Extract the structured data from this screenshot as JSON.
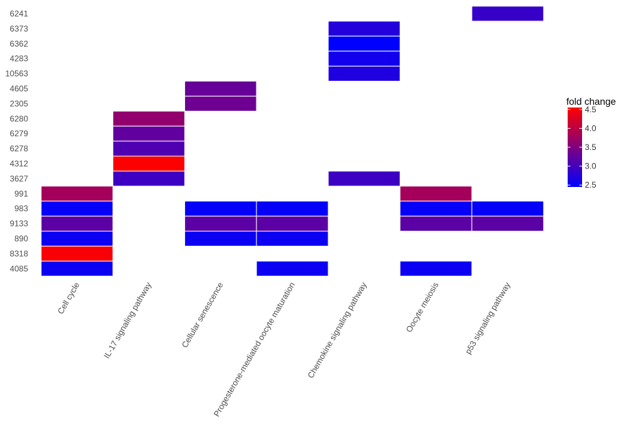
{
  "chart_data": {
    "type": "heatmap",
    "title": "",
    "xlabel": "",
    "ylabel": "",
    "x_categories": [
      "Cell cycle",
      "IL-17 signaling pathway",
      "Cellular senescence",
      "Progesterone-mediated oocyte maturation",
      "Chemokine signaling pathway",
      "Oocyte meiosis",
      "p53 signaling pathway"
    ],
    "y_categories": [
      "6241",
      "6373",
      "6362",
      "4283",
      "10563",
      "4605",
      "2305",
      "6280",
      "6279",
      "6278",
      "4312",
      "3627",
      "991",
      "983",
      "9133",
      "890",
      "8318",
      "4085"
    ],
    "legend": {
      "title": "fold change",
      "range": [
        2.45,
        4.55
      ],
      "ticks": [
        2.5,
        3.0,
        3.5,
        4.0,
        4.5
      ],
      "tick_labels": [
        "2.5",
        "3.0",
        "3.5",
        "4.0",
        "4.5"
      ],
      "position": "right",
      "low_color": "#0000ff",
      "high_color": "#ff0000"
    },
    "grid": false,
    "cells": [
      {
        "x": "p53 signaling pathway",
        "y": "6241",
        "value": 2.9
      },
      {
        "x": "Chemokine signaling pathway",
        "y": "6373",
        "value": 2.75
      },
      {
        "x": "Chemokine signaling pathway",
        "y": "6362",
        "value": 2.45
      },
      {
        "x": "Chemokine signaling pathway",
        "y": "4283",
        "value": 2.6
      },
      {
        "x": "Chemokine signaling pathway",
        "y": "10563",
        "value": 2.7
      },
      {
        "x": "Cellular senescence",
        "y": "4605",
        "value": 3.3
      },
      {
        "x": "Cellular senescence",
        "y": "2305",
        "value": 3.35
      },
      {
        "x": "IL-17 signaling pathway",
        "y": "6280",
        "value": 3.65
      },
      {
        "x": "IL-17 signaling pathway",
        "y": "6279",
        "value": 3.25
      },
      {
        "x": "IL-17 signaling pathway",
        "y": "6278",
        "value": 3.1
      },
      {
        "x": "IL-17 signaling pathway",
        "y": "4312",
        "value": 4.55
      },
      {
        "x": "IL-17 signaling pathway",
        "y": "3627",
        "value": 2.95
      },
      {
        "x": "Chemokine signaling pathway",
        "y": "3627",
        "value": 2.95
      },
      {
        "x": "Cell cycle",
        "y": "991",
        "value": 3.8
      },
      {
        "x": "Oocyte meiosis",
        "y": "991",
        "value": 3.8
      },
      {
        "x": "Cell cycle",
        "y": "983",
        "value": 2.5
      },
      {
        "x": "Cellular senescence",
        "y": "983",
        "value": 2.5
      },
      {
        "x": "Progesterone-mediated oocyte maturation",
        "y": "983",
        "value": 2.5
      },
      {
        "x": "Oocyte meiosis",
        "y": "983",
        "value": 2.5
      },
      {
        "x": "p53 signaling pathway",
        "y": "983",
        "value": 2.5
      },
      {
        "x": "Cell cycle",
        "y": "9133",
        "value": 3.2
      },
      {
        "x": "Cellular senescence",
        "y": "9133",
        "value": 3.2
      },
      {
        "x": "Progesterone-mediated oocyte maturation",
        "y": "9133",
        "value": 3.2
      },
      {
        "x": "Oocyte meiosis",
        "y": "9133",
        "value": 3.2
      },
      {
        "x": "p53 signaling pathway",
        "y": "9133",
        "value": 3.2
      },
      {
        "x": "Cell cycle",
        "y": "890",
        "value": 2.55
      },
      {
        "x": "Cellular senescence",
        "y": "890",
        "value": 2.55
      },
      {
        "x": "Progesterone-mediated oocyte maturation",
        "y": "890",
        "value": 2.55
      },
      {
        "x": "Cell cycle",
        "y": "8318",
        "value": 4.5
      },
      {
        "x": "Cell cycle",
        "y": "4085",
        "value": 2.55
      },
      {
        "x": "Progesterone-mediated oocyte maturation",
        "y": "4085",
        "value": 2.55
      },
      {
        "x": "Oocyte meiosis",
        "y": "4085",
        "value": 2.55
      }
    ]
  }
}
